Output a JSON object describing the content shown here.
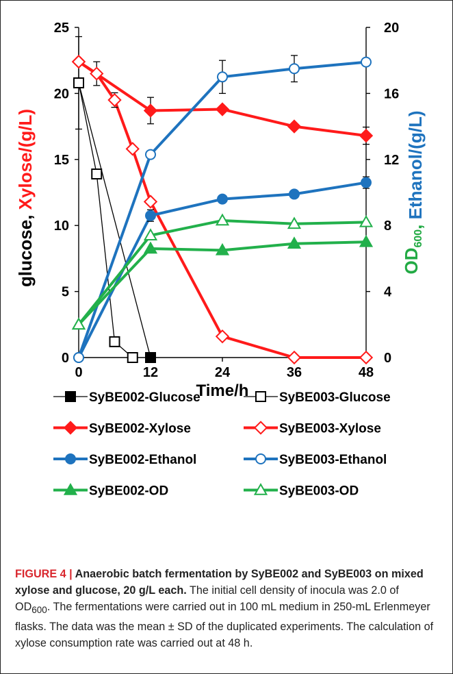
{
  "chart_data": {
    "type": "line",
    "x_label": "Time/h",
    "x_ticks": [
      0,
      12,
      24,
      36,
      48
    ],
    "xlim": [
      0,
      48
    ],
    "left_axis": {
      "ylim": [
        0,
        25
      ],
      "ticks": [
        0,
        5,
        10,
        15,
        20,
        25
      ],
      "label_parts": [
        {
          "text": "glucose, ",
          "color": "#000000"
        },
        {
          "text": "Xylose/(g/L)",
          "color": "#ff1a1a"
        }
      ]
    },
    "right_axis": {
      "ylim": [
        0,
        20
      ],
      "ticks": [
        0,
        4,
        8,
        12,
        16,
        20
      ],
      "label_parts": [
        {
          "text": "OD",
          "color": "#22aa44",
          "sub": "600"
        },
        {
          "text": ", ",
          "color": "#22aa44"
        },
        {
          "text": "Ethanol/(g/L)",
          "color": "#1e73be"
        }
      ]
    },
    "series": [
      {
        "name": "SyBE002-Glucose",
        "axis": "left",
        "color": "#000000",
        "marker": "square",
        "filled": true,
        "line_width": 1.3,
        "points": [
          {
            "x": 0,
            "y": 20.8,
            "err": 3.5
          },
          {
            "x": 12,
            "y": 0
          }
        ]
      },
      {
        "name": "SyBE003-Glucose",
        "axis": "left",
        "color": "#000000",
        "marker": "square",
        "filled": false,
        "line_width": 1.3,
        "points": [
          {
            "x": 0,
            "y": 20.8
          },
          {
            "x": 3,
            "y": 13.9
          },
          {
            "x": 6,
            "y": 1.2
          },
          {
            "x": 9,
            "y": 0
          }
        ]
      },
      {
        "name": "SyBE002-Xylose",
        "axis": "left",
        "color": "#ff1a1a",
        "marker": "diamond",
        "filled": true,
        "line_width": 4,
        "points": [
          {
            "x": 0,
            "y": 22.4
          },
          {
            "x": 12,
            "y": 18.7,
            "err": 1.0
          },
          {
            "x": 24,
            "y": 18.8
          },
          {
            "x": 36,
            "y": 17.5
          },
          {
            "x": 48,
            "y": 16.8,
            "err": 0.65
          }
        ]
      },
      {
        "name": "SyBE003-Xylose",
        "axis": "left",
        "color": "#ff1a1a",
        "marker": "diamond",
        "filled": false,
        "line_width": 4,
        "points": [
          {
            "x": 0,
            "y": 22.4
          },
          {
            "x": 3,
            "y": 21.5,
            "err": 0.9
          },
          {
            "x": 6,
            "y": 19.5,
            "err": 0.55
          },
          {
            "x": 9,
            "y": 15.8
          },
          {
            "x": 12,
            "y": 11.8
          },
          {
            "x": 24,
            "y": 1.6
          },
          {
            "x": 36,
            "y": 0
          },
          {
            "x": 48,
            "y": 0
          }
        ]
      },
      {
        "name": "SyBE002-Ethanol",
        "axis": "right",
        "color": "#1e73be",
        "marker": "circle",
        "filled": true,
        "line_width": 4,
        "points": [
          {
            "x": 0,
            "y": 0
          },
          {
            "x": 12,
            "y": 8.6,
            "err": 0.35
          },
          {
            "x": 24,
            "y": 9.6
          },
          {
            "x": 36,
            "y": 9.9
          },
          {
            "x": 48,
            "y": 10.6,
            "err": 0.35
          }
        ]
      },
      {
        "name": "SyBE003-Ethanol",
        "axis": "right",
        "color": "#1e73be",
        "marker": "circle",
        "filled": false,
        "line_width": 4,
        "points": [
          {
            "x": 0,
            "y": 0
          },
          {
            "x": 12,
            "y": 12.3
          },
          {
            "x": 24,
            "y": 17.0,
            "err": 1.0
          },
          {
            "x": 36,
            "y": 17.5,
            "err": 0.8
          },
          {
            "x": 48,
            "y": 17.9
          }
        ]
      },
      {
        "name": "SyBE002-OD",
        "axis": "right",
        "color": "#22b04b",
        "marker": "triangle",
        "filled": true,
        "line_width": 4,
        "points": [
          {
            "x": 0,
            "y": 2.0
          },
          {
            "x": 12,
            "y": 6.6
          },
          {
            "x": 24,
            "y": 6.5
          },
          {
            "x": 36,
            "y": 6.9
          },
          {
            "x": 48,
            "y": 7.0
          }
        ]
      },
      {
        "name": "SyBE003-OD",
        "axis": "right",
        "color": "#22b04b",
        "marker": "triangle",
        "filled": false,
        "line_width": 4,
        "points": [
          {
            "x": 0,
            "y": 2.0
          },
          {
            "x": 12,
            "y": 7.4
          },
          {
            "x": 24,
            "y": 8.3
          },
          {
            "x": 36,
            "y": 8.1
          },
          {
            "x": 48,
            "y": 8.2
          }
        ]
      }
    ],
    "legend_placement": "below-plot, two columns",
    "grid": false
  },
  "caption": {
    "lead": "FIGURE 4 | Anaerobic batch fermentation by SyBE002 and SyBE003 on mixed xylose and glucose, 20 g/L each.",
    "body": "The initial cell density of inocula was 2.0 of OD600. The fermentations were carried out in 100 mL medium in 250-mL Erlenmeyer flasks. The data was the mean ± SD of the duplicated experiments. The calculation of xylose consumption rate was carried out at 48 h."
  }
}
